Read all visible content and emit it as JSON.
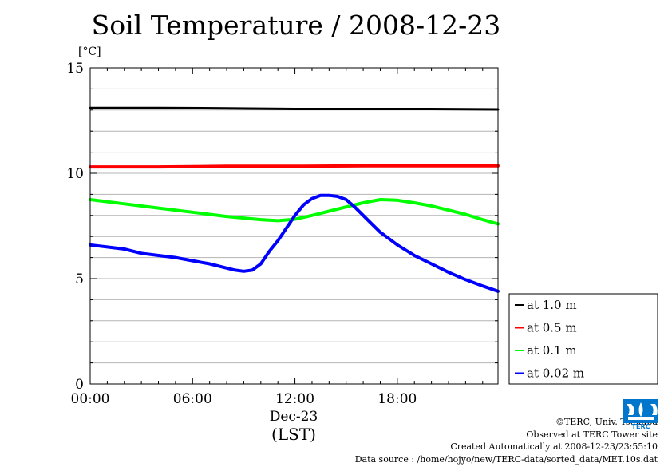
{
  "chart_data": {
    "type": "line",
    "title": "Soil Temperature / 2008-12-23",
    "ylabel": "[°C]",
    "ylim": [
      0,
      15
    ],
    "yticks": [
      "0",
      "5",
      "10",
      "15"
    ],
    "xlim": [
      0,
      23.9
    ],
    "xticks": [
      "00:00",
      "06:00",
      "12:00",
      "18:00"
    ],
    "x_date_label": "Dec-23",
    "xlabel": "(LST)",
    "grid": true,
    "legend_position": "right",
    "series": [
      {
        "name": "at 1.0 m",
        "color": "#000000",
        "x": [
          0,
          4,
          8,
          12,
          16,
          20,
          23.9
        ],
        "y": [
          13.1,
          13.1,
          13.08,
          13.05,
          13.05,
          13.05,
          13.03
        ]
      },
      {
        "name": "at 0.5 m",
        "color": "#ff0000",
        "x": [
          0,
          4,
          8,
          12,
          16,
          20,
          23.9
        ],
        "y": [
          10.3,
          10.3,
          10.33,
          10.33,
          10.35,
          10.35,
          10.35
        ]
      },
      {
        "name": "at 0.1 m",
        "color": "#00ff00",
        "x": [
          0,
          2,
          4,
          6,
          8,
          10,
          11,
          12,
          13,
          14,
          15,
          16,
          17,
          18,
          19,
          20,
          21,
          22,
          23,
          23.9
        ],
        "y": [
          8.75,
          8.55,
          8.35,
          8.15,
          7.95,
          7.8,
          7.75,
          7.82,
          8.0,
          8.2,
          8.4,
          8.6,
          8.75,
          8.72,
          8.6,
          8.45,
          8.25,
          8.05,
          7.8,
          7.6
        ]
      },
      {
        "name": "at 0.02 m",
        "color": "#0000ff",
        "x": [
          0,
          1,
          2,
          3,
          4,
          5,
          6,
          7,
          8,
          8.5,
          9,
          9.5,
          10,
          10.5,
          11,
          11.5,
          12,
          12.5,
          13,
          13.5,
          14,
          14.5,
          15,
          15.5,
          16,
          16.5,
          17,
          17.5,
          18,
          19,
          20,
          21,
          22,
          23,
          23.9
        ],
        "y": [
          6.6,
          6.5,
          6.4,
          6.2,
          6.1,
          6.0,
          5.85,
          5.7,
          5.5,
          5.4,
          5.35,
          5.4,
          5.7,
          6.3,
          6.8,
          7.4,
          8.0,
          8.5,
          8.8,
          8.95,
          8.95,
          8.9,
          8.75,
          8.4,
          8.0,
          7.6,
          7.2,
          6.9,
          6.6,
          6.1,
          5.7,
          5.3,
          4.95,
          4.65,
          4.4
        ]
      }
    ]
  },
  "footer": {
    "credit": "©TERC, Univ. Tsukuba",
    "site": "Observed at TERC Tower site",
    "created": "Created Automatically at 2008-12-23/23:55:10",
    "source": "Data source : /home/hojyo/new/TERC-data/sorted_data/MET.10s.dat"
  },
  "logo": {
    "name": "terc-logo",
    "text": "TERC",
    "color": "#0077cc"
  }
}
